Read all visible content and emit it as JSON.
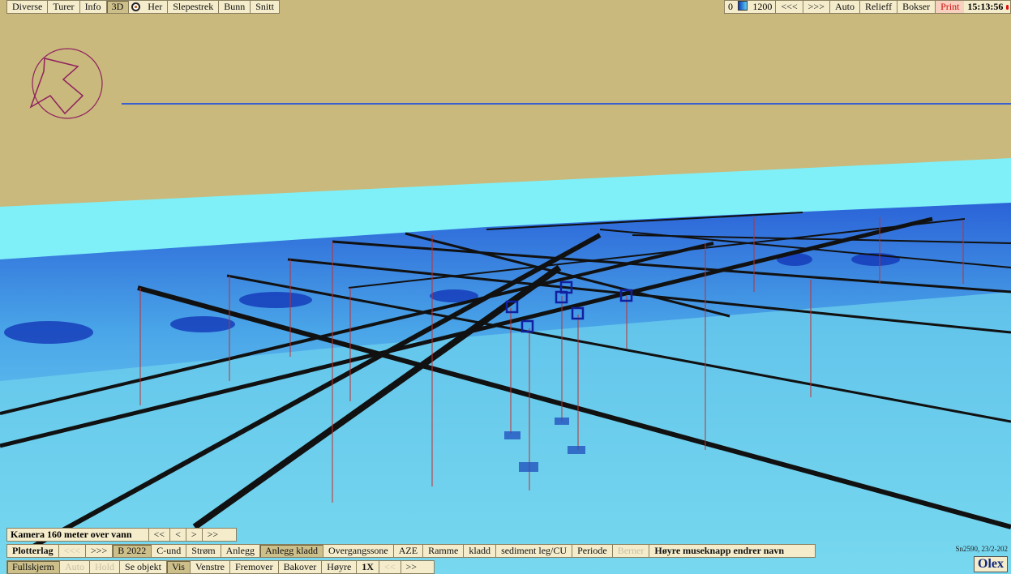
{
  "top_left_bar": [
    {
      "label": "Diverse"
    },
    {
      "label": "Turer"
    },
    {
      "label": "Info"
    },
    {
      "label": "3D",
      "active": true
    },
    {
      "label": "Her"
    },
    {
      "label": "Slepestrek"
    },
    {
      "label": "Bunn"
    },
    {
      "label": "Snitt"
    }
  ],
  "depth_scale": {
    "min": "0",
    "max": "1200"
  },
  "top_right_bar": [
    {
      "label": "<<<"
    },
    {
      "label": ">>>"
    },
    {
      "label": "Auto"
    },
    {
      "label": "Relieff"
    },
    {
      "label": "Bokser"
    },
    {
      "label": "Print",
      "warn": true
    }
  ],
  "clock": "15:13:56",
  "camera_bar": {
    "label": "Kamera 160 meter over vann",
    "buttons": [
      {
        "label": "<<"
      },
      {
        "label": "<"
      },
      {
        "label": ">"
      },
      {
        "label": ">>"
      }
    ]
  },
  "plotter_bar": [
    {
      "label": "Plotterlag",
      "bold": true
    },
    {
      "label": "<<<",
      "disabled": true
    },
    {
      "label": ">>>"
    },
    {
      "label": "B 2022",
      "active": true
    },
    {
      "label": "C-und"
    },
    {
      "label": "Strøm"
    },
    {
      "label": "Anlegg"
    },
    {
      "label": "Anlegg kladd",
      "active": true
    },
    {
      "label": "Overgangssone"
    },
    {
      "label": "AZE"
    },
    {
      "label": "Ramme"
    },
    {
      "label": "kladd"
    },
    {
      "label": "sediment leg/CU"
    },
    {
      "label": "Periode"
    },
    {
      "label": "Berner",
      "disabled": true
    },
    {
      "label": "Høyre museknapp endrer navn",
      "bold": true
    }
  ],
  "nav_bar": [
    {
      "label": "Fullskjerm",
      "active": true
    },
    {
      "label": "Auto",
      "disabled": true
    },
    {
      "label": "Hold",
      "disabled": true
    },
    {
      "label": "Se objekt"
    },
    {
      "label": "Vis",
      "active": true
    },
    {
      "label": "Venstre"
    },
    {
      "label": "Fremover"
    },
    {
      "label": "Bakover"
    },
    {
      "label": "Høyre"
    },
    {
      "label": "1X",
      "bold": true
    },
    {
      "label": "<<",
      "disabled": true
    },
    {
      "label": ">>"
    }
  ],
  "status_info": "Sn2590, 23/2-202",
  "logo": "Olex"
}
